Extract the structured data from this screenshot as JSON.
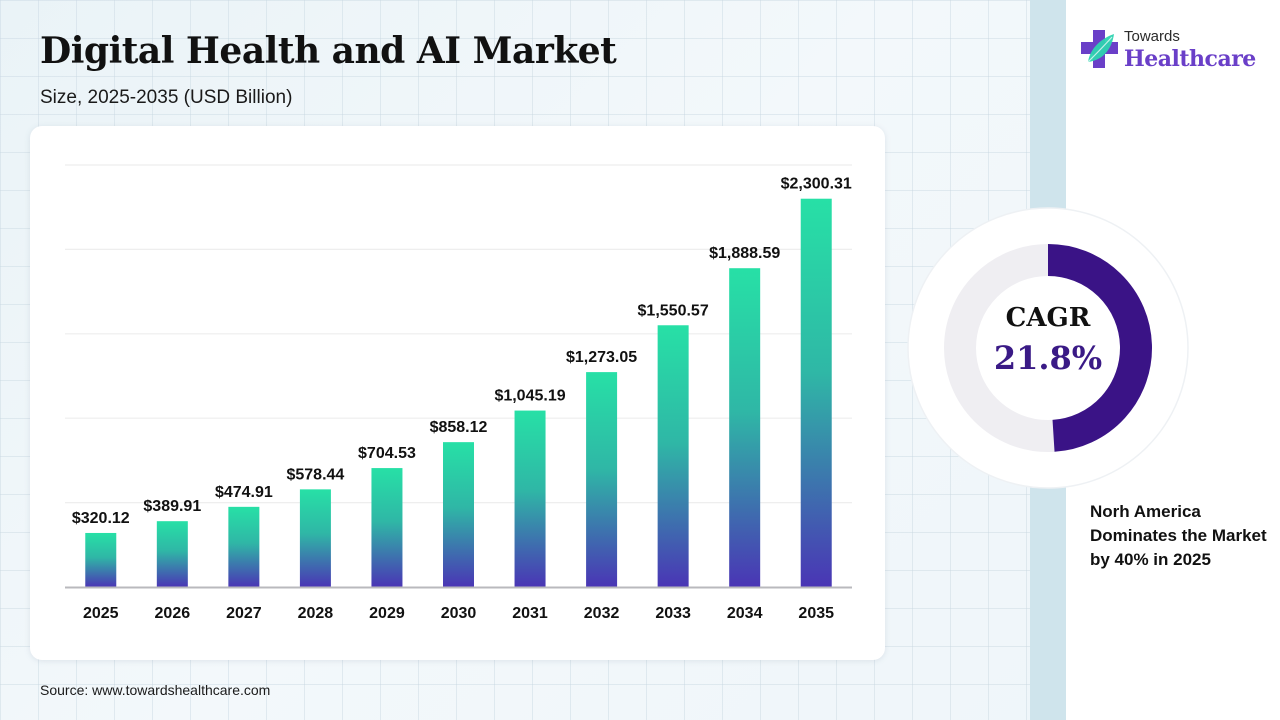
{
  "header": {
    "title": "Digital Health and AI Market",
    "subtitle": "Size, 2025-2035 (USD Billion)"
  },
  "brand": {
    "line1": "Towards",
    "line2": "Healthcare",
    "icon": "medical-cross-leaf-icon",
    "colors": {
      "cross": "#6a3fc8",
      "leaf": "#2ed3b0"
    }
  },
  "chart_data": {
    "type": "bar",
    "title": "Digital Health and AI Market",
    "subtitle": "Size, 2025-2035 (USD Billion)",
    "xlabel": "",
    "ylabel": "",
    "categories": [
      "2025",
      "2026",
      "2027",
      "2028",
      "2029",
      "2030",
      "2031",
      "2032",
      "2033",
      "2034",
      "2035"
    ],
    "values": [
      320.12,
      389.91,
      474.91,
      578.44,
      704.53,
      858.12,
      1045.19,
      1273.05,
      1550.57,
      1888.59,
      2300.31
    ],
    "data_labels": [
      "$320.12",
      "$389.91",
      "$474.91",
      "$578.44",
      "$704.53",
      "$858.12",
      "$1,045.19",
      "$1,273.05",
      "$1,550.57",
      "$1,888.59",
      "$2,300.31"
    ],
    "ylim": [
      0,
      2500
    ],
    "gridlines": [
      500,
      1000,
      1500,
      2000,
      2500
    ],
    "grid": true,
    "y_tick_labels_visible": false,
    "legend": "none",
    "bar_gradient": {
      "top": "#27e0a6",
      "bottom": "#4a35b5"
    }
  },
  "cagr": {
    "label": "CAGR",
    "value": "21.8%",
    "fraction": 0.49,
    "colors": {
      "arc": "#3a1386",
      "track": "#efeef2"
    }
  },
  "note": "Norh America Dominates the Market by 40% in 2025",
  "footer": {
    "source": "Source: www.towardshealthcare.com"
  }
}
